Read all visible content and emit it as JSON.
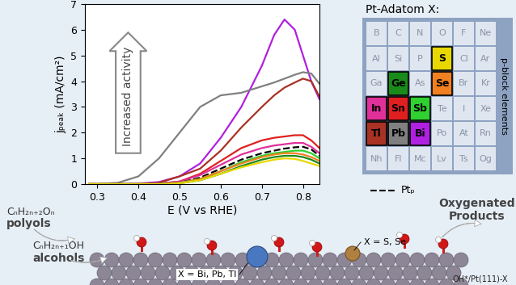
{
  "chart_data": {
    "type": "line",
    "x_label": "E (V vs RHE)",
    "y_label": "jₚₑₐₖ (mA/cm²)",
    "annotations": [
      "Increased activity"
    ],
    "x": [
      0.28,
      0.3,
      0.35,
      0.4,
      0.45,
      0.5,
      0.55,
      0.6,
      0.65,
      0.7,
      0.73,
      0.755,
      0.78,
      0.8,
      0.82,
      0.84
    ],
    "xlim": [
      0.27,
      0.84
    ],
    "xticks": [
      0.3,
      0.4,
      0.5,
      0.6,
      0.7,
      0.8
    ],
    "ylim": [
      0,
      7
    ],
    "yticks": [
      0,
      1,
      2,
      3,
      4,
      5,
      6,
      7
    ],
    "grid": false,
    "series": [
      {
        "name": "Bi",
        "color": "#b020e0",
        "line_style": "solid",
        "values": [
          0,
          0,
          0,
          0.02,
          0.08,
          0.3,
          0.8,
          1.8,
          3.0,
          4.6,
          5.8,
          6.4,
          6.0,
          5.0,
          4.0,
          3.3
        ]
      },
      {
        "name": "Pb",
        "color": "#808080",
        "line_style": "solid",
        "values": [
          0,
          0,
          0.05,
          0.3,
          1.0,
          2.0,
          3.0,
          3.45,
          3.55,
          3.8,
          3.95,
          4.1,
          4.25,
          4.35,
          4.3,
          3.9
        ]
      },
      {
        "name": "Tl",
        "color": "#a83224",
        "line_style": "solid",
        "values": [
          0,
          0,
          0,
          0,
          0.05,
          0.3,
          0.6,
          1.3,
          2.2,
          3.0,
          3.45,
          3.75,
          3.95,
          4.1,
          4.0,
          3.4
        ]
      },
      {
        "name": "Sn",
        "color": "#e02020",
        "line_style": "solid",
        "values": [
          0,
          0,
          0,
          0,
          0.02,
          0.1,
          0.4,
          0.9,
          1.4,
          1.7,
          1.8,
          1.85,
          1.9,
          1.9,
          1.7,
          1.4
        ]
      },
      {
        "name": "In",
        "color": "#e0309a",
        "line_style": "solid",
        "values": [
          0,
          0,
          0,
          0,
          0.02,
          0.1,
          0.35,
          0.75,
          1.15,
          1.4,
          1.5,
          1.55,
          1.6,
          1.6,
          1.45,
          1.2
        ]
      },
      {
        "name": "Ptₚ",
        "color": "#000000",
        "line_style": "dashed",
        "values": [
          0,
          0,
          0,
          0,
          0,
          0.05,
          0.25,
          0.6,
          0.95,
          1.2,
          1.3,
          1.38,
          1.43,
          1.45,
          1.35,
          1.1
        ]
      },
      {
        "name": "Sb",
        "color": "#30d030",
        "line_style": "solid",
        "values": [
          0,
          0,
          0,
          0,
          0,
          0.05,
          0.2,
          0.5,
          0.85,
          1.1,
          1.2,
          1.25,
          1.3,
          1.3,
          1.2,
          1.0
        ]
      },
      {
        "name": "Se",
        "color": "#f08020",
        "line_style": "solid",
        "values": [
          0,
          0,
          0,
          0,
          0,
          0.05,
          0.2,
          0.5,
          0.8,
          1.05,
          1.15,
          1.2,
          1.2,
          1.15,
          1.05,
          0.9
        ]
      },
      {
        "name": "Ge",
        "color": "#1a8a1a",
        "line_style": "solid",
        "values": [
          0,
          0,
          0,
          0,
          0,
          0.03,
          0.15,
          0.4,
          0.7,
          0.95,
          1.05,
          1.1,
          1.1,
          1.05,
          0.95,
          0.8
        ]
      },
      {
        "name": "S",
        "color": "#e8d800",
        "line_style": "solid",
        "values": [
          0,
          0,
          0,
          0,
          0,
          0.03,
          0.15,
          0.4,
          0.65,
          0.85,
          0.95,
          1.0,
          0.98,
          0.9,
          0.8,
          0.7
        ]
      }
    ]
  },
  "periodic_table": {
    "title": "Pt-Adatom X:",
    "side_label": "p-block elements",
    "rows": [
      [
        "B",
        "C",
        "N",
        "O",
        "F",
        "Ne"
      ],
      [
        "Al",
        "Si",
        "P",
        "S",
        "Cl",
        "Ar"
      ],
      [
        "Ga",
        "Ge",
        "As",
        "Se",
        "Br",
        "Kr"
      ],
      [
        "In",
        "Sn",
        "Sb",
        "Te",
        "I",
        "Xe"
      ],
      [
        "Tl",
        "Pb",
        "Bi",
        "Po",
        "At",
        "Rn"
      ],
      [
        "Nh",
        "Fl",
        "Mc",
        "Lv",
        "Ts",
        "Og"
      ]
    ]
  },
  "scheme": {
    "polyols_formula": "CₙH₂ₙ₊₂Oₙ",
    "polyols": "polyols",
    "alcohols_formula": "CₙH₂ₙ₊₁OH",
    "alcohols": "alcohols",
    "products": "Oxygenated\nProducts",
    "adatom_small": "X = S, Se",
    "adatom_large": "X = Bi, Pb, Tl",
    "surface": "OH*/Pt(111)-X"
  }
}
